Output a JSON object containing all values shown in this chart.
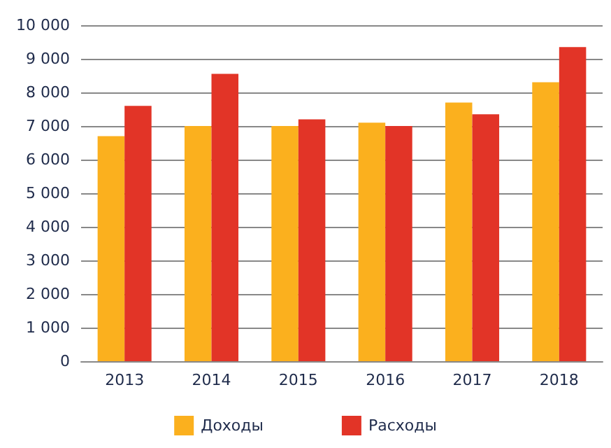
{
  "chart_data": {
    "type": "bar",
    "categories": [
      "2013",
      "2014",
      "2015",
      "2016",
      "2017",
      "2018"
    ],
    "series": [
      {
        "name": "Доходы",
        "color": "#fbb01e",
        "values": [
          6700,
          7000,
          7000,
          7100,
          7700,
          8300
        ]
      },
      {
        "name": "Расходы",
        "color": "#e23427",
        "values": [
          7600,
          8550,
          7200,
          7000,
          7350,
          9350
        ]
      }
    ],
    "ylim": [
      0,
      10000
    ],
    "yticks": [
      {
        "value": 0,
        "label": "0"
      },
      {
        "value": 1000,
        "label": "1 000"
      },
      {
        "value": 2000,
        "label": "2 000"
      },
      {
        "value": 3000,
        "label": "3 000"
      },
      {
        "value": 4000,
        "label": "4 000"
      },
      {
        "value": 5000,
        "label": "5 000"
      },
      {
        "value": 6000,
        "label": "6 000"
      },
      {
        "value": 7000,
        "label": "7 000"
      },
      {
        "value": 8000,
        "label": "8 000"
      },
      {
        "value": 9000,
        "label": "9 000"
      },
      {
        "value": 10000,
        "label": "10 000"
      }
    ],
    "grid": "y",
    "legend": "bottom"
  }
}
